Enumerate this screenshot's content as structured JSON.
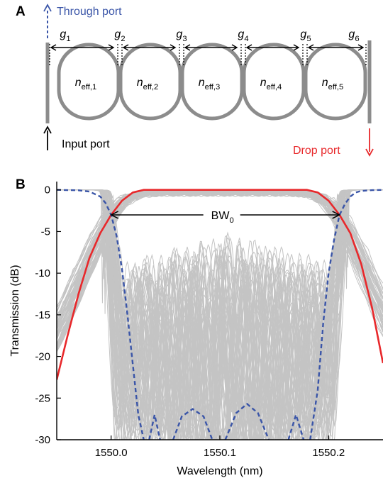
{
  "panel_a": {
    "label": "A",
    "through_port": "Through port",
    "input_port": "Input port",
    "drop_port": "Drop port",
    "gaps": [
      {
        "base": "g",
        "sub": "1"
      },
      {
        "base": "g",
        "sub": "2"
      },
      {
        "base": "g",
        "sub": "3"
      },
      {
        "base": "g",
        "sub": "4"
      },
      {
        "base": "g",
        "sub": "5"
      },
      {
        "base": "g",
        "sub": "6"
      }
    ],
    "rings": [
      {
        "base": "n",
        "sub": "eff,1"
      },
      {
        "base": "n",
        "sub": "eff,2"
      },
      {
        "base": "n",
        "sub": "eff,3"
      },
      {
        "base": "n",
        "sub": "eff,4"
      },
      {
        "base": "n",
        "sub": "eff,5"
      }
    ],
    "colors": {
      "waveguide": "#8c8c8c",
      "through": "#3a55a8",
      "drop": "#e8282b",
      "input": "#000000"
    }
  },
  "chart_data": {
    "panel_label": "B",
    "type": "line",
    "xlabel": "Wavelength (nm)",
    "ylabel": "Transmission (dB)",
    "xlim": [
      1549.95,
      1550.25
    ],
    "ylim": [
      -30,
      1
    ],
    "xticks": [
      1550.0,
      1550.1,
      1550.2
    ],
    "xtick_labels": [
      "1550.0",
      "1550.1",
      "1550.2"
    ],
    "yticks": [
      0,
      -5,
      -10,
      -15,
      -20,
      -25,
      -30
    ],
    "ytick_labels": [
      "0",
      "-5",
      "-10",
      "-15",
      "-20",
      "-25",
      "-30"
    ],
    "annotation": {
      "base": "BW",
      "sub": "0",
      "x_from": 1550.0,
      "x_to": 1550.21,
      "y": -3
    },
    "colors": {
      "drop": "#e8282b",
      "through": "#3a55a8",
      "variations": "#c4c4c4"
    },
    "series": [
      {
        "role": "drop",
        "x": [
          1549.95,
          1549.96,
          1549.97,
          1549.98,
          1549.99,
          1550.0,
          1550.01,
          1550.02,
          1550.03,
          1550.05,
          1550.1,
          1550.15,
          1550.18,
          1550.19,
          1550.2,
          1550.21,
          1550.22,
          1550.23,
          1550.24,
          1550.25
        ],
        "y": [
          -22.8,
          -17.5,
          -12.5,
          -8.2,
          -5.2,
          -3.0,
          -1.3,
          -0.3,
          0,
          0,
          0,
          0,
          0,
          -0.3,
          -1.3,
          -3.0,
          -5.2,
          -8.9,
          -14.2,
          -20.8
        ]
      },
      {
        "role": "through",
        "segments": [
          {
            "x": [
              1549.95,
              1549.97,
              1549.98,
              1549.99,
              1549.995,
              1550.0,
              1550.005,
              1550.01,
              1550.015,
              1550.02,
              1550.025,
              1550.03
            ],
            "y": [
              0,
              -0.05,
              -0.2,
              -0.8,
              -1.6,
              -3.0,
              -5.5,
              -9.5,
              -15.0,
              -21.0,
              -27.0,
              -30
            ]
          },
          {
            "x": [
              1550.035,
              1550.04,
              1550.045
            ],
            "y": [
              -30,
              -27.0,
              -30
            ]
          },
          {
            "x": [
              1550.057,
              1550.065,
              1550.075,
              1550.085,
              1550.093
            ],
            "y": [
              -30,
              -27.2,
              -26.3,
              -27.2,
              -30
            ]
          },
          {
            "x": [
              1550.105,
              1550.115,
              1550.125,
              1550.135,
              1550.145
            ],
            "y": [
              -30,
              -26.8,
              -25.7,
              -26.8,
              -30
            ]
          },
          {
            "x": [
              1550.163,
              1550.17,
              1550.177
            ],
            "y": [
              -30,
              -27.0,
              -30
            ]
          },
          {
            "x": [
              1550.183,
              1550.19,
              1550.195,
              1550.2,
              1550.205,
              1550.21,
              1550.215,
              1550.22,
              1550.225,
              1550.23,
              1550.24,
              1550.25
            ],
            "y": [
              -30,
              -24.0,
              -16.0,
              -10.0,
              -6.0,
              -3.0,
              -1.7,
              -0.8,
              -0.3,
              -0.12,
              -0.03,
              0
            ]
          }
        ]
      }
    ]
  }
}
